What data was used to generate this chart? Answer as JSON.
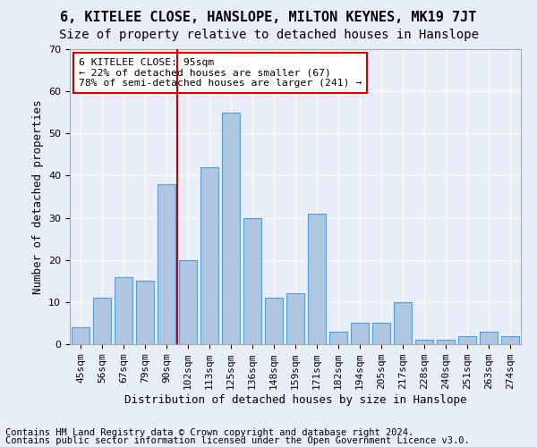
{
  "title": "6, KITELEE CLOSE, HANSLOPE, MILTON KEYNES, MK19 7JT",
  "subtitle": "Size of property relative to detached houses in Hanslope",
  "xlabel": "Distribution of detached houses by size in Hanslope",
  "ylabel": "Number of detached properties",
  "footer_line1": "Contains HM Land Registry data © Crown copyright and database right 2024.",
  "footer_line2": "Contains public sector information licensed under the Open Government Licence v3.0.",
  "categories": [
    "45sqm",
    "56sqm",
    "67sqm",
    "79sqm",
    "90sqm",
    "102sqm",
    "113sqm",
    "125sqm",
    "136sqm",
    "148sqm",
    "159sqm",
    "171sqm",
    "182sqm",
    "194sqm",
    "205sqm",
    "217sqm",
    "228sqm",
    "240sqm",
    "251sqm",
    "263sqm",
    "274sqm"
  ],
  "values": [
    4,
    11,
    16,
    15,
    38,
    20,
    42,
    55,
    30,
    11,
    12,
    31,
    3,
    5,
    5,
    10,
    1,
    1,
    2,
    3,
    2
  ],
  "bar_color": "#aec6e0",
  "bar_edge_color": "#5b9bd5",
  "vline_x": 4.5,
  "vline_color": "#cc0000",
  "annotation_text": "6 KITELEE CLOSE: 95sqm\n← 22% of detached houses are smaller (67)\n78% of semi-detached houses are larger (241) →",
  "annotation_box_color": "white",
  "annotation_box_edge": "#cc0000",
  "ylim": [
    0,
    70
  ],
  "yticks": [
    0,
    10,
    20,
    30,
    40,
    50,
    60,
    70
  ],
  "background_color": "#e8eef7",
  "title_fontsize": 11,
  "subtitle_fontsize": 10,
  "axis_label_fontsize": 9,
  "tick_fontsize": 8,
  "footer_fontsize": 7.5
}
